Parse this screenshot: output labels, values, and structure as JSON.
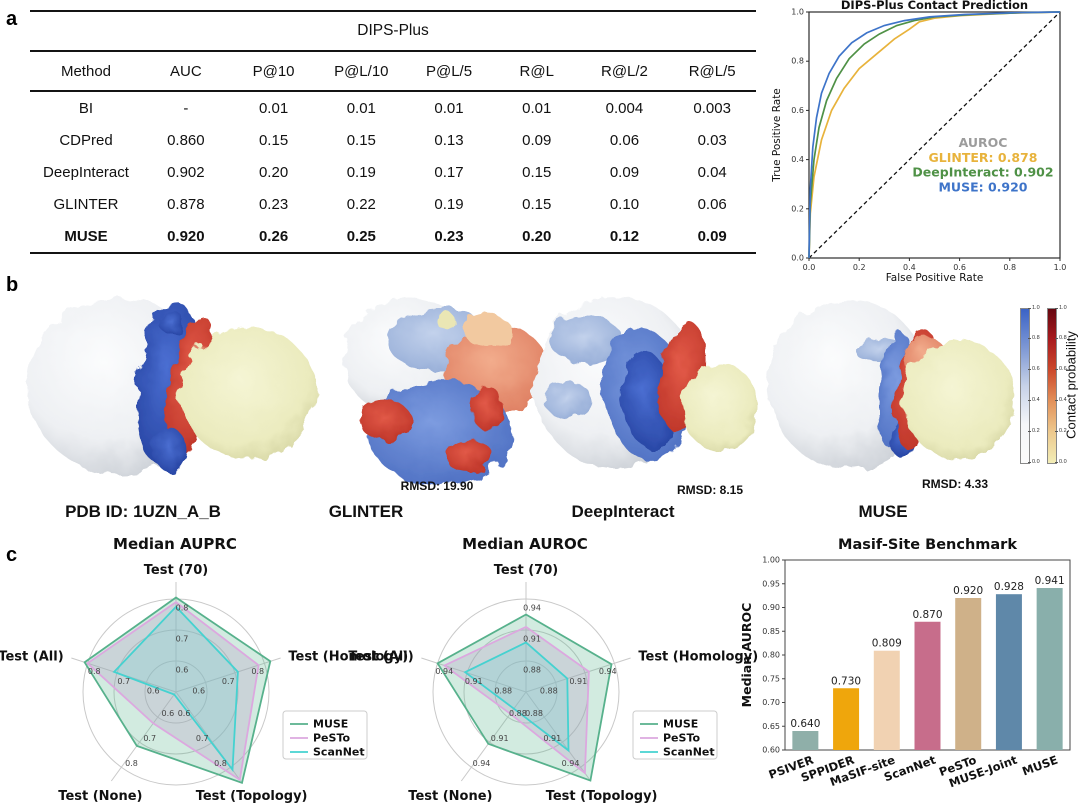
{
  "panel_labels": {
    "a": "a",
    "b": "b",
    "c": "c"
  },
  "proteins": {
    "items": [
      {
        "label": "PDB ID: 1UZN_A_B",
        "rmsd": ""
      },
      {
        "label": "GLINTER",
        "rmsd": "RMSD: 19.90"
      },
      {
        "label": "DeepInteract",
        "rmsd": "RMSD: 8.15"
      },
      {
        "label": "MUSE",
        "rmsd": "RMSD: 4.33"
      }
    ]
  },
  "colorbar": {
    "label": "Contact probability",
    "ticks": [
      "1.0",
      "0.8",
      "0.6",
      "0.4",
      "0.2",
      "0.0"
    ],
    "blue_stops": [
      "#3B63C6",
      "#7D97D4",
      "#C7D2E8",
      "#F5F6F8",
      "#FBFBFB"
    ],
    "red_stops": [
      "#670710",
      "#A91B1E",
      "#CC4A2C",
      "#E2915A",
      "#EDC98E",
      "#F2EDB6"
    ]
  },
  "chart_data": [
    {
      "id": "dips_table",
      "type": "table",
      "title": "DIPS-Plus",
      "columns": [
        "Method",
        "AUC",
        "P@10",
        "P@L/10",
        "P@L/5",
        "R@L",
        "R@L/2",
        "R@L/5"
      ],
      "rows": [
        {
          "cells": [
            "BI",
            "-",
            "0.01",
            "0.01",
            "0.01",
            "0.01",
            "0.004",
            "0.003"
          ],
          "bold": false
        },
        {
          "cells": [
            "CDPred",
            "0.860",
            "0.15",
            "0.15",
            "0.13",
            "0.09",
            "0.06",
            "0.03"
          ],
          "bold": false
        },
        {
          "cells": [
            "DeepInteract",
            "0.902",
            "0.20",
            "0.19",
            "0.17",
            "0.15",
            "0.09",
            "0.04"
          ],
          "bold": false
        },
        {
          "cells": [
            "GLINTER",
            "0.878",
            "0.23",
            "0.22",
            "0.19",
            "0.15",
            "0.10",
            "0.06"
          ],
          "bold": false
        },
        {
          "cells": [
            "MUSE",
            "0.920",
            "0.26",
            "0.25",
            "0.23",
            "0.20",
            "0.12",
            "0.09"
          ],
          "bold": true
        }
      ]
    },
    {
      "id": "roc",
      "type": "line",
      "title": "DIPS-Plus Contact Prediction",
      "xlabel": "False Positive Rate",
      "ylabel": "True Positive Rate",
      "xlim": [
        0,
        1
      ],
      "ylim": [
        0,
        1
      ],
      "xticks": [
        0.0,
        0.2,
        0.4,
        0.6,
        0.8,
        1.0
      ],
      "yticks": [
        0.0,
        0.2,
        0.4,
        0.6,
        0.8,
        1.0
      ],
      "diagonal": true,
      "legend_title": "AUROC",
      "legend_title_color": "#9c9c9c",
      "series": [
        {
          "name": "GLINTER",
          "auroc": "0.878",
          "color": "#E8B33C",
          "x": [
            0,
            0.005,
            0.02,
            0.05,
            0.09,
            0.14,
            0.2,
            0.27,
            0.34,
            0.4,
            0.44,
            0.5,
            0.6,
            0.8,
            1.0
          ],
          "y": [
            0,
            0.18,
            0.33,
            0.48,
            0.6,
            0.69,
            0.77,
            0.83,
            0.89,
            0.93,
            0.96,
            0.975,
            0.985,
            0.995,
            1.0
          ]
        },
        {
          "name": "DeepInteract",
          "auroc": "0.902",
          "color": "#4F9146",
          "x": [
            0,
            0.005,
            0.02,
            0.04,
            0.07,
            0.11,
            0.16,
            0.22,
            0.28,
            0.35,
            0.42,
            0.5,
            0.65,
            0.85,
            1.0
          ],
          "y": [
            0,
            0.22,
            0.4,
            0.53,
            0.64,
            0.73,
            0.81,
            0.87,
            0.91,
            0.945,
            0.965,
            0.98,
            0.99,
            0.997,
            1.0
          ]
        },
        {
          "name": "MUSE",
          "auroc": "0.920",
          "color": "#3E74C9",
          "x": [
            0,
            0.005,
            0.015,
            0.03,
            0.05,
            0.08,
            0.12,
            0.17,
            0.23,
            0.3,
            0.38,
            0.48,
            0.62,
            0.82,
            1.0
          ],
          "y": [
            0,
            0.28,
            0.45,
            0.57,
            0.67,
            0.75,
            0.82,
            0.875,
            0.915,
            0.945,
            0.965,
            0.98,
            0.99,
            0.997,
            1.0
          ]
        }
      ]
    },
    {
      "id": "radar_auprc",
      "type": "radar",
      "title": "Median AUPRC",
      "axes": [
        "Test (70)",
        "Test (Homology)",
        "Test (Topology)",
        "Test (None)",
        "Test (All)"
      ],
      "center": 0.5,
      "rings": [
        0.6,
        0.7,
        0.8
      ],
      "ring_labels": [
        "0.6",
        "0.7",
        "0.8"
      ],
      "series": [
        {
          "name": "MUSE",
          "color": "#57B18C",
          "fill": "rgba(95,183,143,0.28)",
          "values": [
            0.805,
            0.82,
            0.862,
            0.715,
            0.81
          ]
        },
        {
          "name": "PeSTo",
          "color": "#DCA8DF",
          "fill": "rgba(185,160,200,0.30)",
          "values": [
            0.79,
            0.78,
            0.85,
            0.625,
            0.8
          ]
        },
        {
          "name": "ScanNet",
          "color": "#45D2D0",
          "fill": "rgba(90,210,208,0.20)",
          "values": [
            0.775,
            0.71,
            0.81,
            0.51,
            0.71
          ]
        }
      ]
    },
    {
      "id": "radar_auroc",
      "type": "radar",
      "title": "Median AUROC",
      "axes": [
        "Test (70)",
        "Test (Homology)",
        "Test (Topology)",
        "Test (None)",
        "Test (All)"
      ],
      "center": 0.85,
      "rings": [
        0.88,
        0.91,
        0.94
      ],
      "ring_labels": [
        "0.88",
        "0.91",
        "0.94"
      ],
      "series": [
        {
          "name": "MUSE",
          "color": "#57B18C",
          "fill": "rgba(95,183,143,0.28)",
          "values": [
            0.925,
            0.937,
            0.956,
            0.912,
            0.94
          ]
        },
        {
          "name": "PeSTo",
          "color": "#DCA8DF",
          "fill": "rgba(185,160,200,0.30)",
          "values": [
            0.913,
            0.914,
            0.947,
            0.876,
            0.933
          ]
        },
        {
          "name": "ScanNet",
          "color": "#45D2D0",
          "fill": "rgba(90,210,208,0.20)",
          "values": [
            0.898,
            0.892,
            0.92,
            0.87,
            0.912
          ]
        }
      ]
    },
    {
      "id": "bar_masif",
      "type": "bar",
      "title": "Masif-Site Benchmark",
      "ylabel": "Median AUROC",
      "ylim": [
        0.6,
        1.0
      ],
      "yticks": [
        0.6,
        0.65,
        0.7,
        0.75,
        0.8,
        0.85,
        0.9,
        0.95,
        1.0
      ],
      "categories": [
        "PSIVER",
        "SPPIDER",
        "MaSIF-site",
        "ScanNet",
        "PeSTo",
        "MUSE-Joint",
        "MUSE"
      ],
      "values": [
        0.64,
        0.73,
        0.809,
        0.87,
        0.92,
        0.928,
        0.941
      ],
      "labels": [
        "0.640",
        "0.730",
        "0.809",
        "0.870",
        "0.920",
        "0.928",
        "0.941"
      ],
      "colors": [
        "#8FAFA9",
        "#EFA60C",
        "#F1D2B2",
        "#C76D8B",
        "#CFB189",
        "#5F88A9",
        "#89AFAB"
      ]
    }
  ]
}
